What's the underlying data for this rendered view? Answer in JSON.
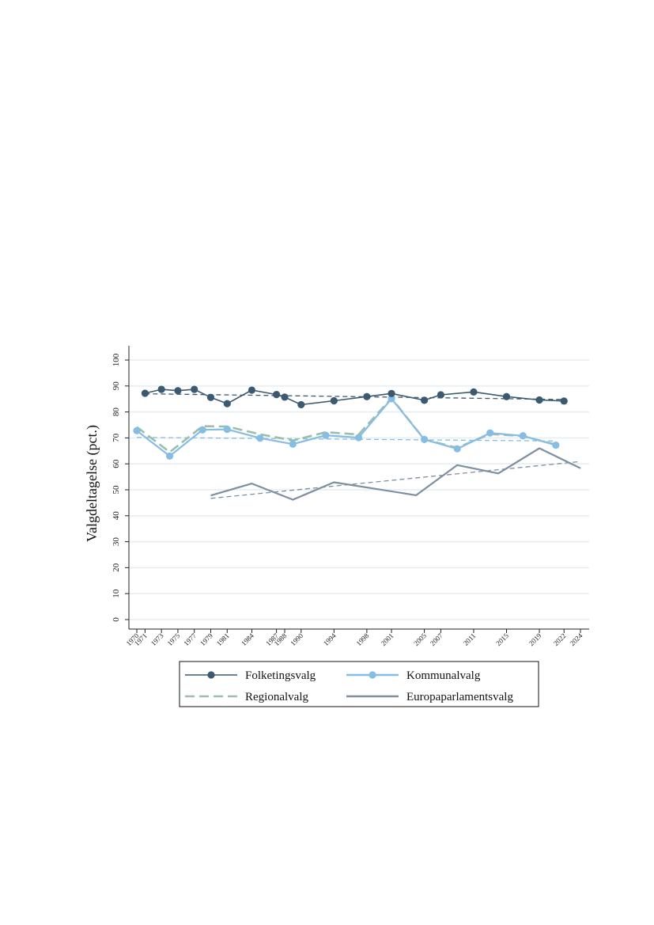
{
  "chart_data": {
    "type": "line",
    "ylabel": "Valgdeltagelse (pct.)",
    "xlabel": "",
    "ylim": [
      0,
      100
    ],
    "yticks": [
      0,
      10,
      20,
      30,
      40,
      50,
      60,
      70,
      80,
      90,
      100
    ],
    "xlim": [
      1970,
      2024
    ],
    "xticks": [
      1970,
      1971,
      1973,
      1975,
      1977,
      1979,
      1981,
      1984,
      1987,
      1988,
      1990,
      1994,
      1998,
      2001,
      2005,
      2007,
      2011,
      2015,
      2019,
      2022,
      2024
    ],
    "grid": true,
    "legend_position": "bottom",
    "colors": {
      "folketingsvalg": "#3b5a70",
      "kommunalvalg": "#86bde3",
      "regionalvalg": "#9bbdaa",
      "europa": "#7e8fa2",
      "grid": "#e6eef0"
    },
    "series": [
      {
        "key": "folketingsvalg",
        "name": "Folketingsvalg",
        "style": "solid-marker",
        "x": [
          1971,
          1973,
          1975,
          1977,
          1979,
          1981,
          1984,
          1987,
          1988,
          1990,
          1994,
          1998,
          2001,
          2005,
          2007,
          2011,
          2015,
          2019,
          2022
        ],
        "y": [
          87.2,
          88.7,
          88.2,
          88.7,
          85.6,
          83.2,
          88.4,
          86.7,
          85.7,
          82.8,
          84.3,
          85.9,
          87.1,
          84.5,
          86.6,
          87.7,
          85.9,
          84.6,
          84.2
        ],
        "trend": [
          [
            1971,
            87.0
          ],
          [
            2022,
            84.8
          ]
        ]
      },
      {
        "key": "regionalvalg",
        "name": "Regionalvalg",
        "style": "dashed",
        "x": [
          1970,
          1974,
          1978,
          1981,
          1985,
          1989,
          1993,
          1997,
          2001,
          2005,
          2009,
          2013,
          2017,
          2021
        ],
        "y": [
          74.2,
          64.5,
          74.5,
          74.4,
          71.4,
          69.0,
          72.2,
          71.3,
          85.3,
          69.4,
          66.2,
          71.5,
          70.7,
          67.4
        ],
        "trend": []
      },
      {
        "key": "kommunalvalg",
        "name": "Kommunalvalg",
        "style": "solid-marker",
        "x": [
          1970,
          1974,
          1978,
          1981,
          1985,
          1989,
          1993,
          1997,
          2001,
          2005,
          2009,
          2013,
          2017,
          2021
        ],
        "y": [
          72.8,
          63.0,
          73.1,
          73.3,
          69.9,
          67.6,
          71.0,
          70.1,
          85.1,
          69.4,
          65.8,
          71.9,
          70.8,
          67.2
        ],
        "trend": [
          [
            1970,
            70.2
          ],
          [
            2021,
            68.8
          ]
        ]
      },
      {
        "key": "europa",
        "name": "Europaparlamentsvalg",
        "style": "solid",
        "x": [
          1979,
          1984,
          1989,
          1994,
          1999,
          2004,
          2009,
          2014,
          2019,
          2024
        ],
        "y": [
          47.8,
          52.4,
          46.2,
          52.9,
          50.4,
          47.9,
          59.5,
          56.3,
          66.0,
          58.3
        ],
        "trend": [
          [
            1979,
            46.7
          ],
          [
            2024,
            60.9
          ]
        ]
      }
    ],
    "legend": {
      "order": [
        "folketingsvalg",
        "kommunalvalg",
        "regionalvalg",
        "europa"
      ]
    }
  }
}
